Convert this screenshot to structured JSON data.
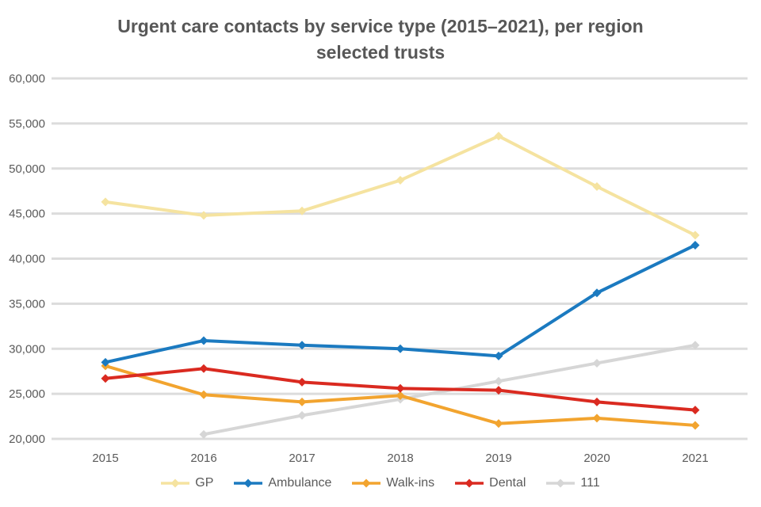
{
  "title": {
    "line1": "Urgent care contacts by service type (2015–2021), per region",
    "line2": "selected trusts"
  },
  "chart_data": {
    "type": "line",
    "x_categories": [
      "2015",
      "2016",
      "2017",
      "2018",
      "2019",
      "2020",
      "2021"
    ],
    "series": [
      {
        "name": "GP",
        "color": "#f5e3a0",
        "values": [
          46300,
          44800,
          45300,
          48700,
          53600,
          48000,
          42600
        ]
      },
      {
        "name": "Ambulance",
        "color": "#1b7ac0",
        "values": [
          28500,
          30900,
          30400,
          30000,
          29200,
          36200,
          41500
        ]
      },
      {
        "name": "Walk-ins",
        "color": "#f2a42f",
        "values": [
          28100,
          24900,
          24100,
          24800,
          21700,
          22300,
          21500
        ]
      },
      {
        "name": "Dental",
        "color": "#da2a20",
        "values": [
          26700,
          27800,
          26300,
          25600,
          25400,
          24100,
          23200
        ]
      },
      {
        "name": "111",
        "color": "#d6d6d6",
        "values": [
          null,
          20500,
          22600,
          24400,
          26400,
          28400,
          30400
        ]
      }
    ],
    "ylim": [
      20000,
      60000
    ],
    "ytick_step": 5000,
    "ytick_labels": [
      "60,000",
      "55,000",
      "50,000",
      "45,000",
      "40,000",
      "35,000",
      "30,000",
      "25,000",
      "20,000"
    ],
    "grid": true,
    "legend_position": "bottom",
    "marker": "diamond"
  },
  "colors": {
    "background": "#ffffff",
    "gridline": "#dcdcdc",
    "title_text": "#575757",
    "axis_text": "#5a5a5a"
  }
}
